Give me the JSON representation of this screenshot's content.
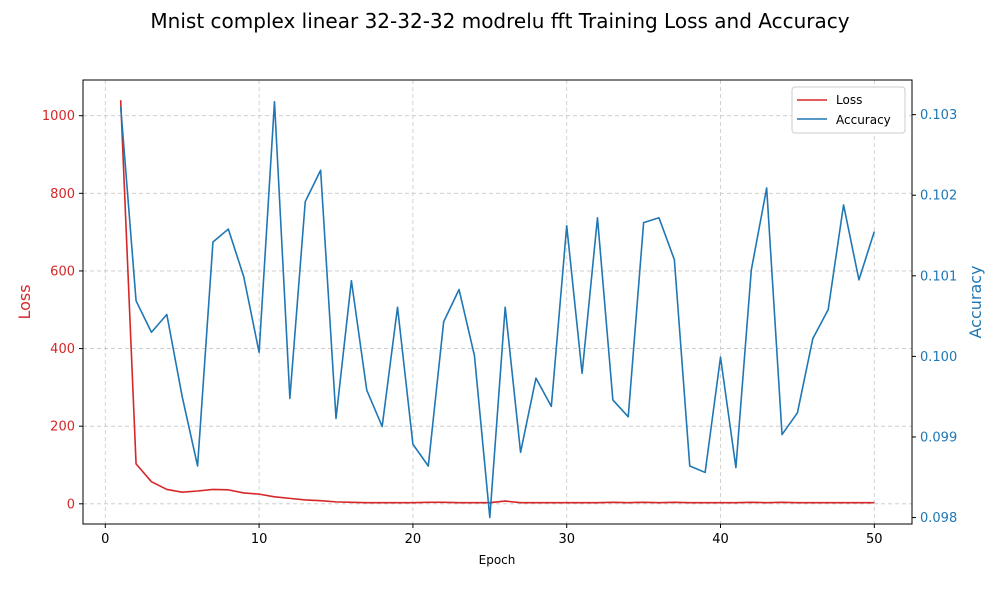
{
  "chart_data": {
    "type": "line",
    "title": "Mnist complex linear 32-32-32 modrelu fft Training Loss and Accuracy",
    "xlabel": "Epoch",
    "ylabel_left": "Loss",
    "ylabel_right": "Accuracy",
    "xlim": [
      -1.45,
      52.45
    ],
    "ylim_left": [
      -52,
      1092
    ],
    "ylim_right": [
      0.09792,
      0.10343
    ],
    "x_ticks": [
      "0",
      "10",
      "20",
      "30",
      "40",
      "50"
    ],
    "y_ticks_left": [
      "0",
      "200",
      "400",
      "600",
      "800",
      "1000"
    ],
    "y_ticks_right": [
      "0.098",
      "0.099",
      "0.100",
      "0.101",
      "0.102",
      "0.103"
    ],
    "grid": true,
    "legend_position": "top-right",
    "colors": {
      "loss": "#d62728",
      "accuracy": "#1f77b4"
    },
    "x": [
      1,
      2,
      3,
      4,
      5,
      6,
      7,
      8,
      9,
      10,
      11,
      12,
      13,
      14,
      15,
      16,
      17,
      18,
      19,
      20,
      21,
      22,
      23,
      24,
      25,
      26,
      27,
      28,
      29,
      30,
      31,
      32,
      33,
      34,
      35,
      36,
      37,
      38,
      39,
      40,
      41,
      42,
      43,
      44,
      45,
      46,
      47,
      48,
      49,
      50
    ],
    "series": [
      {
        "name": "Loss",
        "axis": "left",
        "values": [
          1040,
          103,
          57,
          37,
          30,
          33,
          37,
          36,
          28,
          25,
          18,
          14,
          10,
          8,
          5,
          4,
          3,
          3,
          3,
          3,
          4,
          4,
          3,
          3,
          3,
          7,
          3,
          3,
          3,
          3,
          3,
          3,
          4,
          3,
          4,
          3,
          4,
          3,
          3,
          3,
          3,
          4,
          3,
          4,
          3,
          3,
          3,
          3,
          3,
          3
        ]
      },
      {
        "name": "Accuracy",
        "axis": "right",
        "values": [
          0.1031,
          0.10069,
          0.1003,
          0.10052,
          0.0995,
          0.09864,
          0.10142,
          0.10158,
          0.10099,
          0.10005,
          0.10316,
          0.09948,
          0.10192,
          0.10231,
          0.09923,
          0.10094,
          0.09958,
          0.09913,
          0.10061,
          0.09891,
          0.09864,
          0.10043,
          0.10083,
          0.10001,
          0.098,
          0.10061,
          0.09881,
          0.09973,
          0.09938,
          0.10162,
          0.09979,
          0.10172,
          0.09946,
          0.09925,
          0.10166,
          0.10172,
          0.1012,
          0.09864,
          0.09856,
          0.09999,
          0.09862,
          0.10107,
          0.10209,
          0.09903,
          0.0993,
          0.10022,
          0.10058,
          0.10188,
          0.10095,
          0.10155
        ]
      }
    ]
  }
}
